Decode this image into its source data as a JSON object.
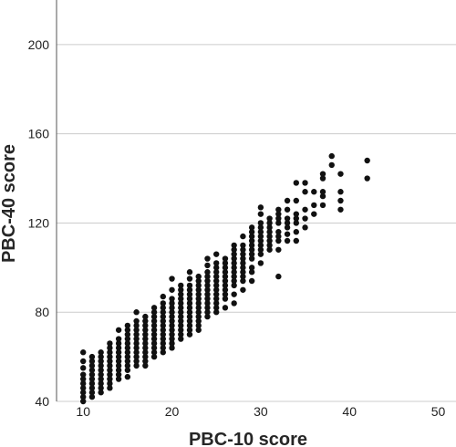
{
  "chart_data": {
    "type": "scatter",
    "title": "",
    "xlabel": "PBC-10 score",
    "ylabel": "PBC-40 score",
    "xlim": [
      7,
      52
    ],
    "ylim": [
      40,
      220
    ],
    "xticks": [
      10,
      20,
      30,
      40,
      50
    ],
    "yticks": [
      40,
      80,
      120,
      160,
      200
    ],
    "grid": "horizontal",
    "legend": "none",
    "colors": {
      "marker": "#111111",
      "grid": "#cccccc",
      "axis": "#555555"
    },
    "series": [
      {
        "points": [
          [
            10,
            40
          ],
          [
            10,
            42
          ],
          [
            10,
            44
          ],
          [
            10,
            46
          ],
          [
            10,
            48
          ],
          [
            10,
            50
          ],
          [
            10,
            52
          ],
          [
            10,
            55
          ],
          [
            10,
            58
          ],
          [
            10,
            62
          ],
          [
            11,
            42
          ],
          [
            11,
            44
          ],
          [
            11,
            46
          ],
          [
            11,
            48
          ],
          [
            11,
            50
          ],
          [
            11,
            52
          ],
          [
            11,
            54
          ],
          [
            11,
            56
          ],
          [
            11,
            58
          ],
          [
            11,
            60
          ],
          [
            12,
            44
          ],
          [
            12,
            46
          ],
          [
            12,
            48
          ],
          [
            12,
            50
          ],
          [
            12,
            52
          ],
          [
            12,
            54
          ],
          [
            12,
            56
          ],
          [
            12,
            58
          ],
          [
            12,
            60
          ],
          [
            12,
            62
          ],
          [
            13,
            46
          ],
          [
            13,
            48
          ],
          [
            13,
            50
          ],
          [
            13,
            52
          ],
          [
            13,
            54
          ],
          [
            13,
            56
          ],
          [
            13,
            58
          ],
          [
            13,
            60
          ],
          [
            13,
            62
          ],
          [
            13,
            64
          ],
          [
            13,
            66
          ],
          [
            14,
            50
          ],
          [
            14,
            52
          ],
          [
            14,
            54
          ],
          [
            14,
            56
          ],
          [
            14,
            58
          ],
          [
            14,
            60
          ],
          [
            14,
            62
          ],
          [
            14,
            64
          ],
          [
            14,
            66
          ],
          [
            14,
            68
          ],
          [
            14,
            72
          ],
          [
            15,
            51
          ],
          [
            15,
            54
          ],
          [
            15,
            56
          ],
          [
            15,
            58
          ],
          [
            15,
            60
          ],
          [
            15,
            62
          ],
          [
            15,
            64
          ],
          [
            15,
            66
          ],
          [
            15,
            68
          ],
          [
            15,
            70
          ],
          [
            15,
            72
          ],
          [
            15,
            74
          ],
          [
            16,
            56
          ],
          [
            16,
            58
          ],
          [
            16,
            60
          ],
          [
            16,
            62
          ],
          [
            16,
            64
          ],
          [
            16,
            66
          ],
          [
            16,
            68
          ],
          [
            16,
            70
          ],
          [
            16,
            72
          ],
          [
            16,
            74
          ],
          [
            16,
            76
          ],
          [
            16,
            80
          ],
          [
            17,
            56
          ],
          [
            17,
            58
          ],
          [
            17,
            60
          ],
          [
            17,
            62
          ],
          [
            17,
            64
          ],
          [
            17,
            66
          ],
          [
            17,
            68
          ],
          [
            17,
            70
          ],
          [
            17,
            72
          ],
          [
            17,
            74
          ],
          [
            17,
            76
          ],
          [
            17,
            78
          ],
          [
            18,
            60
          ],
          [
            18,
            62
          ],
          [
            18,
            64
          ],
          [
            18,
            66
          ],
          [
            18,
            68
          ],
          [
            18,
            70
          ],
          [
            18,
            72
          ],
          [
            18,
            74
          ],
          [
            18,
            76
          ],
          [
            18,
            78
          ],
          [
            18,
            80
          ],
          [
            18,
            82
          ],
          [
            19,
            62
          ],
          [
            19,
            64
          ],
          [
            19,
            66
          ],
          [
            19,
            68
          ],
          [
            19,
            70
          ],
          [
            19,
            72
          ],
          [
            19,
            74
          ],
          [
            19,
            76
          ],
          [
            19,
            78
          ],
          [
            19,
            80
          ],
          [
            19,
            82
          ],
          [
            19,
            84
          ],
          [
            19,
            87
          ],
          [
            20,
            64
          ],
          [
            20,
            66
          ],
          [
            20,
            68
          ],
          [
            20,
            70
          ],
          [
            20,
            72
          ],
          [
            20,
            74
          ],
          [
            20,
            76
          ],
          [
            20,
            78
          ],
          [
            20,
            80
          ],
          [
            20,
            82
          ],
          [
            20,
            84
          ],
          [
            20,
            86
          ],
          [
            20,
            90
          ],
          [
            20,
            95
          ],
          [
            21,
            68
          ],
          [
            21,
            70
          ],
          [
            21,
            72
          ],
          [
            21,
            74
          ],
          [
            21,
            76
          ],
          [
            21,
            78
          ],
          [
            21,
            80
          ],
          [
            21,
            82
          ],
          [
            21,
            84
          ],
          [
            21,
            86
          ],
          [
            21,
            88
          ],
          [
            21,
            90
          ],
          [
            21,
            92
          ],
          [
            22,
            70
          ],
          [
            22,
            72
          ],
          [
            22,
            74
          ],
          [
            22,
            76
          ],
          [
            22,
            78
          ],
          [
            22,
            80
          ],
          [
            22,
            82
          ],
          [
            22,
            84
          ],
          [
            22,
            86
          ],
          [
            22,
            88
          ],
          [
            22,
            90
          ],
          [
            22,
            92
          ],
          [
            22,
            95
          ],
          [
            22,
            98
          ],
          [
            23,
            72
          ],
          [
            23,
            74
          ],
          [
            23,
            76
          ],
          [
            23,
            78
          ],
          [
            23,
            80
          ],
          [
            23,
            82
          ],
          [
            23,
            84
          ],
          [
            23,
            86
          ],
          [
            23,
            88
          ],
          [
            23,
            90
          ],
          [
            23,
            92
          ],
          [
            23,
            94
          ],
          [
            23,
            96
          ],
          [
            24,
            78
          ],
          [
            24,
            80
          ],
          [
            24,
            82
          ],
          [
            24,
            84
          ],
          [
            24,
            86
          ],
          [
            24,
            88
          ],
          [
            24,
            90
          ],
          [
            24,
            92
          ],
          [
            24,
            94
          ],
          [
            24,
            96
          ],
          [
            24,
            98
          ],
          [
            24,
            101
          ],
          [
            24,
            104
          ],
          [
            25,
            80
          ],
          [
            25,
            82
          ],
          [
            25,
            84
          ],
          [
            25,
            86
          ],
          [
            25,
            88
          ],
          [
            25,
            90
          ],
          [
            25,
            92
          ],
          [
            25,
            94
          ],
          [
            25,
            96
          ],
          [
            25,
            98
          ],
          [
            25,
            100
          ],
          [
            25,
            102
          ],
          [
            25,
            106
          ],
          [
            26,
            82
          ],
          [
            26,
            86
          ],
          [
            26,
            88
          ],
          [
            26,
            90
          ],
          [
            26,
            92
          ],
          [
            26,
            94
          ],
          [
            26,
            96
          ],
          [
            26,
            98
          ],
          [
            26,
            100
          ],
          [
            26,
            102
          ],
          [
            26,
            104
          ],
          [
            27,
            84
          ],
          [
            27,
            88
          ],
          [
            27,
            92
          ],
          [
            27,
            94
          ],
          [
            27,
            96
          ],
          [
            27,
            98
          ],
          [
            27,
            100
          ],
          [
            27,
            102
          ],
          [
            27,
            104
          ],
          [
            27,
            106
          ],
          [
            27,
            108
          ],
          [
            27,
            110
          ],
          [
            28,
            90
          ],
          [
            28,
            94
          ],
          [
            28,
            96
          ],
          [
            28,
            98
          ],
          [
            28,
            100
          ],
          [
            28,
            102
          ],
          [
            28,
            104
          ],
          [
            28,
            106
          ],
          [
            28,
            108
          ],
          [
            28,
            110
          ],
          [
            28,
            114
          ],
          [
            29,
            94
          ],
          [
            29,
            98
          ],
          [
            29,
            100
          ],
          [
            29,
            104
          ],
          [
            29,
            106
          ],
          [
            29,
            108
          ],
          [
            29,
            110
          ],
          [
            29,
            112
          ],
          [
            29,
            114
          ],
          [
            29,
            116
          ],
          [
            29,
            118
          ],
          [
            30,
            102
          ],
          [
            30,
            106
          ],
          [
            30,
            108
          ],
          [
            30,
            110
          ],
          [
            30,
            112
          ],
          [
            30,
            114
          ],
          [
            30,
            116
          ],
          [
            30,
            118
          ],
          [
            30,
            120
          ],
          [
            30,
            124
          ],
          [
            30,
            127
          ],
          [
            31,
            108
          ],
          [
            31,
            110
          ],
          [
            31,
            112
          ],
          [
            31,
            114
          ],
          [
            31,
            116
          ],
          [
            31,
            118
          ],
          [
            31,
            120
          ],
          [
            31,
            122
          ],
          [
            32,
            96
          ],
          [
            32,
            108
          ],
          [
            32,
            112
          ],
          [
            32,
            114
          ],
          [
            32,
            116
          ],
          [
            32,
            120
          ],
          [
            32,
            122
          ],
          [
            32,
            124
          ],
          [
            32,
            126
          ],
          [
            33,
            112
          ],
          [
            33,
            115
          ],
          [
            33,
            118
          ],
          [
            33,
            120
          ],
          [
            33,
            122
          ],
          [
            33,
            126
          ],
          [
            33,
            130
          ],
          [
            34,
            112
          ],
          [
            34,
            116
          ],
          [
            34,
            120
          ],
          [
            34,
            122
          ],
          [
            34,
            124
          ],
          [
            34,
            130
          ],
          [
            34,
            138
          ],
          [
            35,
            118
          ],
          [
            35,
            122
          ],
          [
            35,
            126
          ],
          [
            35,
            134
          ],
          [
            35,
            138
          ],
          [
            36,
            124
          ],
          [
            36,
            128
          ],
          [
            36,
            134
          ],
          [
            37,
            128
          ],
          [
            37,
            132
          ],
          [
            37,
            134
          ],
          [
            37,
            140
          ],
          [
            37,
            142
          ],
          [
            38,
            146
          ],
          [
            38,
            150
          ],
          [
            39,
            126
          ],
          [
            39,
            130
          ],
          [
            39,
            134
          ],
          [
            39,
            142
          ],
          [
            42,
            140
          ],
          [
            42,
            148
          ]
        ]
      }
    ]
  }
}
